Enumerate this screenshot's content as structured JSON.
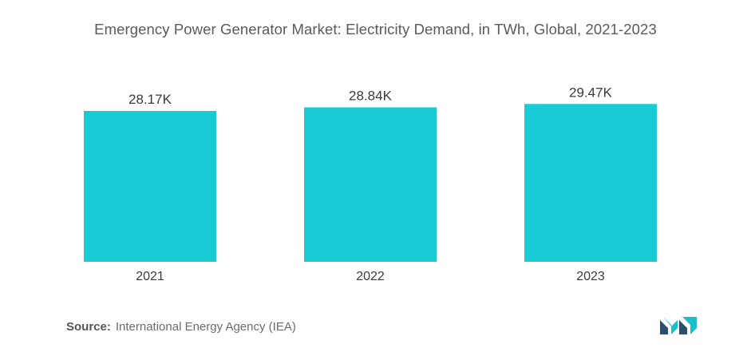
{
  "chart_data": {
    "type": "bar",
    "title": "Emergency Power Generator Market: Electricity Demand, in TWh, Global, 2021-2023",
    "categories": [
      "2021",
      "2022",
      "2023"
    ],
    "values": [
      28170,
      28840,
      29470
    ],
    "value_labels": [
      "28.17K",
      "28.84K",
      "29.47K"
    ],
    "xlabel": "",
    "ylabel": "",
    "ylim": [
      0,
      31000
    ],
    "grid": false,
    "bar_color": "#19CBD4"
  },
  "source": {
    "label": "Source:",
    "text": "International Energy Agency (IEA)"
  },
  "colors": {
    "title": "#5a5a5a",
    "logo_dark": "#2c4f6e",
    "logo_teal": "#19bfc9"
  }
}
